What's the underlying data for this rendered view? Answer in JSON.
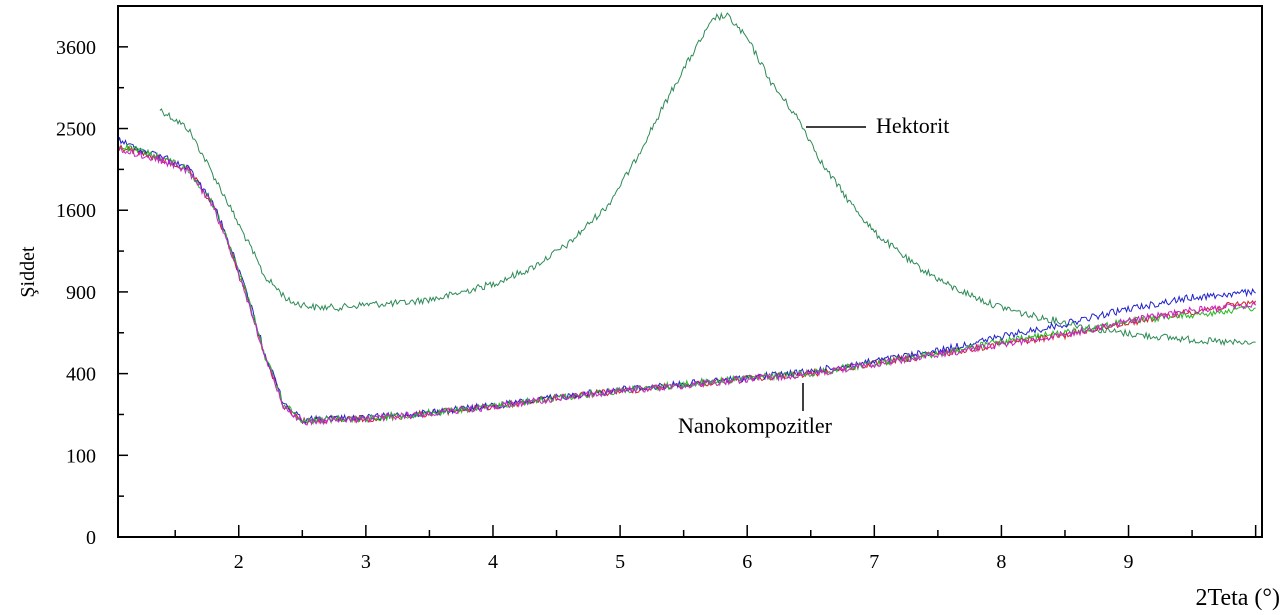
{
  "chart_data": {
    "type": "line",
    "title": "",
    "xlabel": "2Teta (°)",
    "ylabel": "Şiddet",
    "xlim": [
      1.05,
      10.05
    ],
    "y_axis_scale": "sqrt",
    "ylim": [
      0,
      4225
    ],
    "x_ticks": [
      2,
      3,
      4,
      5,
      6,
      7,
      8,
      9
    ],
    "y_ticks": [
      0,
      100,
      400,
      900,
      1600,
      2500,
      3600
    ],
    "grid": false,
    "legend": "none",
    "annotations": [
      {
        "text": "Hektorit",
        "points_to_series": "Hektorit"
      },
      {
        "text": "Nanokompozitler",
        "points_to_series": "Nanokompozitler"
      }
    ],
    "series": [
      {
        "name": "Hektorit",
        "color": "#2e8b57",
        "x": [
          1.38,
          1.6,
          1.8,
          2.0,
          2.2,
          2.4,
          2.6,
          2.8,
          3.0,
          3.3,
          3.6,
          4.0,
          4.3,
          4.6,
          4.9,
          5.1,
          5.3,
          5.5,
          5.65,
          5.75,
          5.85,
          6.0,
          6.2,
          6.4,
          6.6,
          6.8,
          7.0,
          7.3,
          7.6,
          7.9,
          8.2,
          8.5,
          8.8,
          9.1,
          9.4,
          9.7,
          10.0
        ],
        "y": [
          2740,
          2500,
          1960,
          1460,
          1020,
          830,
          790,
          790,
          810,
          820,
          860,
          960,
          1080,
          1290,
          1640,
          2070,
          2650,
          3280,
          3750,
          4050,
          4060,
          3720,
          3060,
          2620,
          2060,
          1690,
          1390,
          1120,
          940,
          820,
          740,
          690,
          640,
          610,
          590,
          570,
          560
        ]
      },
      {
        "name": "Nanokompozitler",
        "color": "#cc2222",
        "x": [
          1.05,
          1.2,
          1.4,
          1.6,
          1.8,
          2.0,
          2.2,
          2.35,
          2.5,
          2.7,
          3.0,
          3.3,
          3.6,
          4.0,
          4.5,
          5.0,
          5.5,
          6.0,
          6.5,
          7.0,
          7.5,
          8.0,
          8.5,
          9.0,
          9.5,
          10.0
        ],
        "y": [
          2280,
          2220,
          2130,
          2020,
          1640,
          1040,
          490,
          260,
          200,
          205,
          210,
          220,
          235,
          255,
          290,
          320,
          345,
          375,
          400,
          450,
          500,
          560,
          610,
          690,
          760,
          830
        ]
      },
      {
        "name": "",
        "color": "#2222cc",
        "x": [
          1.05,
          1.2,
          1.4,
          1.6,
          1.8,
          2.0,
          2.2,
          2.35,
          2.5,
          2.7,
          3.0,
          3.3,
          3.6,
          4.0,
          4.5,
          5.0,
          5.5,
          6.0,
          6.5,
          7.0,
          7.5,
          8.0,
          8.5,
          9.0,
          9.5,
          10.0
        ],
        "y": [
          2360,
          2260,
          2160,
          2040,
          1660,
          1060,
          510,
          270,
          205,
          210,
          212,
          224,
          238,
          258,
          292,
          326,
          350,
          380,
          410,
          462,
          520,
          600,
          680,
          780,
          860,
          900
        ]
      },
      {
        "name": "",
        "color": "#22bb22",
        "x": [
          1.05,
          1.2,
          1.4,
          1.6,
          1.8,
          2.0,
          2.2,
          2.35,
          2.5,
          2.7,
          3.0,
          3.3,
          3.6,
          4.0,
          4.5,
          5.0,
          5.5,
          6.0,
          6.5,
          7.0,
          7.5,
          8.0,
          8.5,
          9.0,
          9.5,
          10.0
        ],
        "y": [
          2300,
          2240,
          2150,
          2030,
          1650,
          1050,
          500,
          265,
          202,
          208,
          211,
          222,
          236,
          256,
          290,
          322,
          348,
          378,
          402,
          452,
          505,
          570,
          625,
          700,
          740,
          790
        ]
      },
      {
        "name": "",
        "color": "#cc22cc",
        "x": [
          1.05,
          1.2,
          1.4,
          1.6,
          1.8,
          2.0,
          2.2,
          2.35,
          2.5,
          2.7,
          3.0,
          3.3,
          3.6,
          4.0,
          4.5,
          5.0,
          5.5,
          6.0,
          6.5,
          7.0,
          7.5,
          8.0,
          8.5,
          9.0,
          9.5,
          10.0
        ],
        "y": [
          2240,
          2200,
          2120,
          2010,
          1630,
          1030,
          485,
          258,
          198,
          204,
          209,
          219,
          234,
          254,
          288,
          320,
          344,
          374,
          398,
          448,
          498,
          558,
          612,
          700,
          770,
          810
        ]
      }
    ]
  }
}
